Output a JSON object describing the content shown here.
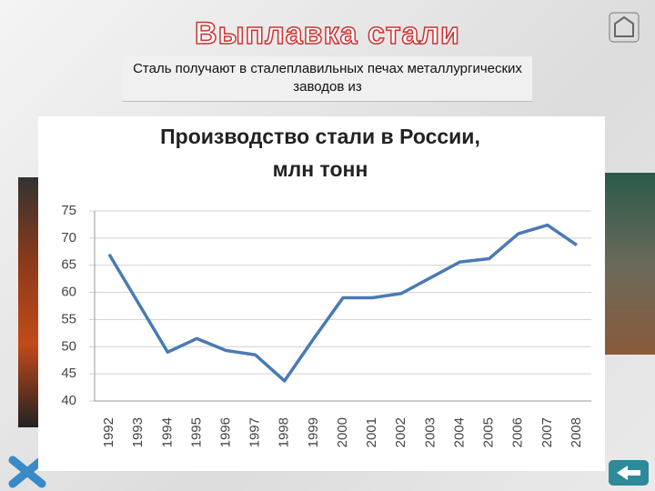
{
  "slide": {
    "heading": "Выплавка стали",
    "text": "Сталь получают в сталеплавильных печах металлургических заводов из"
  },
  "chart_data": {
    "type": "line",
    "title": [
      "Производство стали в России,",
      "млн тонн"
    ],
    "categories": [
      "1992",
      "1993",
      "1994",
      "1995",
      "1996",
      "1997",
      "1998",
      "1999",
      "2000",
      "2001",
      "2002",
      "2003",
      "2004",
      "2005",
      "2006",
      "2007",
      "2008"
    ],
    "series": [
      {
        "name": "Производство стали",
        "color": "#4a7ab5",
        "values": [
          67,
          58,
          49,
          51.5,
          49.3,
          48.5,
          43.7,
          51.5,
          59,
          59,
          59.8,
          62.7,
          65.6,
          66.2,
          70.8,
          72.4,
          68.7
        ]
      }
    ],
    "ylim": [
      40,
      75
    ],
    "yticks": [
      40,
      45,
      50,
      55,
      60,
      65,
      70,
      75
    ],
    "grid": true,
    "legend": false
  }
}
